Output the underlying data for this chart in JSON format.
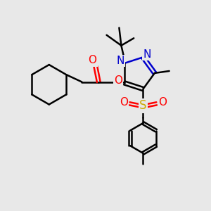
{
  "background_color": "#e8e8e8",
  "bond_color": "#000000",
  "bond_width": 1.8,
  "n_color": "#0000cc",
  "o_color": "#ff0000",
  "s_color": "#ccaa00",
  "text_color": "#000000",
  "figsize": [
    3.0,
    3.0
  ],
  "dpi": 100,
  "xlim": [
    0,
    10
  ],
  "ylim": [
    0,
    10
  ]
}
